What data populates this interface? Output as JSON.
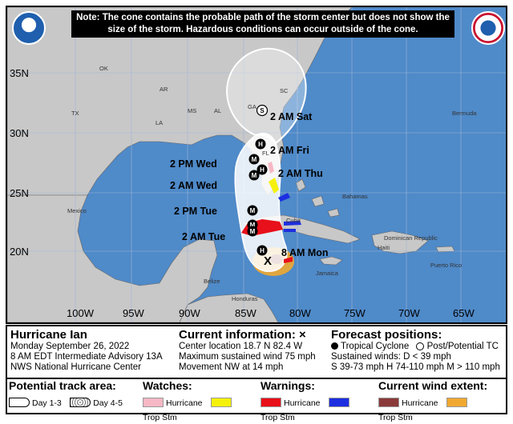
{
  "note": "Note: The cone contains the probable path of the storm center but does not show the size of the storm. Hazardous conditions can occur outside of the cone.",
  "latitudes": [
    "35N",
    "30N",
    "25N",
    "20N"
  ],
  "longitudes": [
    "100W",
    "95W",
    "90W",
    "85W",
    "80W",
    "75W",
    "70W",
    "65W"
  ],
  "places": [
    "OK",
    "AR",
    "TX",
    "LA",
    "MS",
    "AL",
    "GA",
    "SC",
    "FL",
    "Mexico",
    "Bahamas",
    "Cuba",
    "Jamaica",
    "Bermuda",
    "Belize",
    "Honduras",
    "Haiti",
    "Dominican Republic",
    "Puerto Rico"
  ],
  "forecast_labels": [
    "2 AM Sat",
    "2 AM Fri",
    "2 AM Thu",
    "2 PM Wed",
    "2 AM Wed",
    "2 PM Tue",
    "2 AM Tue",
    "8 AM Mon"
  ],
  "forecast_markers": [
    "S",
    "H",
    "H",
    "M",
    "M",
    "M",
    "M",
    "M",
    "H"
  ],
  "current_mark": "X",
  "storm": {
    "name": "Hurricane Ian",
    "date": "Monday September 26, 2022",
    "advisory": "8 AM EDT Intermediate Advisory 13A",
    "center": "NWS National Hurricane Center"
  },
  "current_info": {
    "title": "Current information:",
    "mark": "×",
    "location": "Center location 18.7 N 82.4 W",
    "wind": "Maximum sustained wind 75 mph",
    "movement": "Movement NW at 14 mph"
  },
  "forecast_positions": {
    "title": "Forecast positions:",
    "tropical": "Tropical Cyclone",
    "post": "Post/Potential TC",
    "sustained": "Sustained winds:",
    "d": "D < 39 mph",
    "categories": "S 39-73 mph  H 74-110 mph  M > 110 mph"
  },
  "legend": {
    "track_title": "Potential track area:",
    "day13": "Day 1-3",
    "day45": "Day 4-5",
    "watches_title": "Watches:",
    "warnings_title": "Warnings:",
    "wind_title": "Current wind extent:",
    "hurricane": "Hurricane",
    "trop_stm": "Trop Stm"
  },
  "colors": {
    "ocean": "#4f8ac9",
    "land": "#c8c8c8",
    "cone": "#ffffff",
    "hurricane_warning": "#e8101a",
    "ts_warning": "#1d2ee0",
    "hurricane_watch": "#f6b8c4",
    "ts_watch": "#f5f10a",
    "wind_hurricane": "#8b3a3a",
    "wind_ts": "#f0a830"
  },
  "logos": [
    "noaa-logo",
    "nws-logo"
  ]
}
